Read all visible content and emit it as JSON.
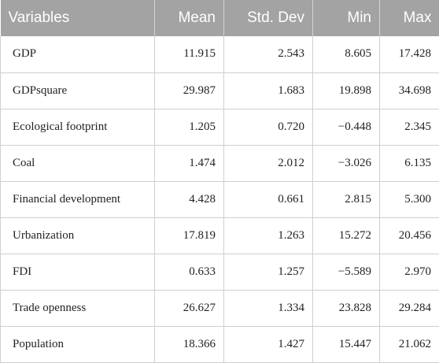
{
  "table": {
    "headers": [
      "Variables",
      "Mean",
      "Std. Dev",
      "Min",
      "Max"
    ],
    "rows": [
      [
        "GDP",
        "11.915",
        "2.543",
        "8.605",
        "17.428"
      ],
      [
        "GDPsquare",
        "29.987",
        "1.683",
        "19.898",
        "34.698"
      ],
      [
        "Ecological footprint",
        "1.205",
        "0.720",
        "−0.448",
        "2.345"
      ],
      [
        "Coal",
        "1.474",
        "2.012",
        "−3.026",
        "6.135"
      ],
      [
        "Financial development",
        "4.428",
        "0.661",
        "2.815",
        "5.300"
      ],
      [
        "Urbanization",
        "17.819",
        "1.263",
        "15.272",
        "20.456"
      ],
      [
        "FDI",
        "0.633",
        "1.257",
        "−5.589",
        "2.970"
      ],
      [
        "Trade openness",
        "26.627",
        "1.334",
        "23.828",
        "29.284"
      ],
      [
        "Population",
        "18.366",
        "1.427",
        "15.447",
        "21.062"
      ]
    ]
  }
}
